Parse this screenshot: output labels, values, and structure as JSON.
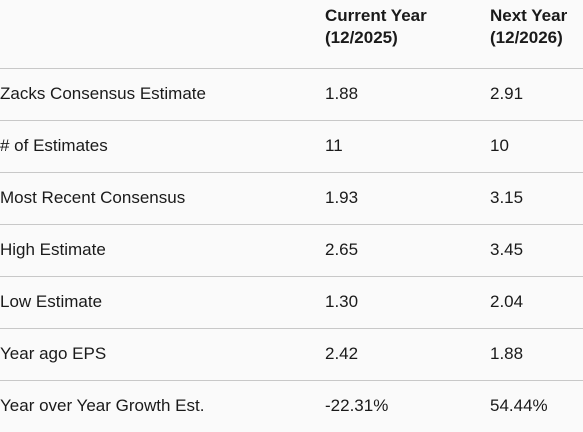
{
  "table": {
    "headers": [
      {
        "line1": "",
        "line2": ""
      },
      {
        "line1": "Current Year",
        "line2": "(12/2025)"
      },
      {
        "line1": "Next Year",
        "line2": "(12/2026)"
      }
    ],
    "rows": [
      {
        "label": "Zacks Consensus Estimate",
        "current": "1.88",
        "next": "2.91"
      },
      {
        "label": "# of Estimates",
        "current": "11",
        "next": "10"
      },
      {
        "label": "Most Recent Consensus",
        "current": "1.93",
        "next": "3.15"
      },
      {
        "label": "High Estimate",
        "current": "2.65",
        "next": "3.45"
      },
      {
        "label": "Low Estimate",
        "current": "1.30",
        "next": "2.04"
      },
      {
        "label": "Year ago EPS",
        "current": "2.42",
        "next": "1.88"
      },
      {
        "label": "Year over Year Growth Est.",
        "current": "-22.31%",
        "next": "54.44%"
      }
    ]
  }
}
